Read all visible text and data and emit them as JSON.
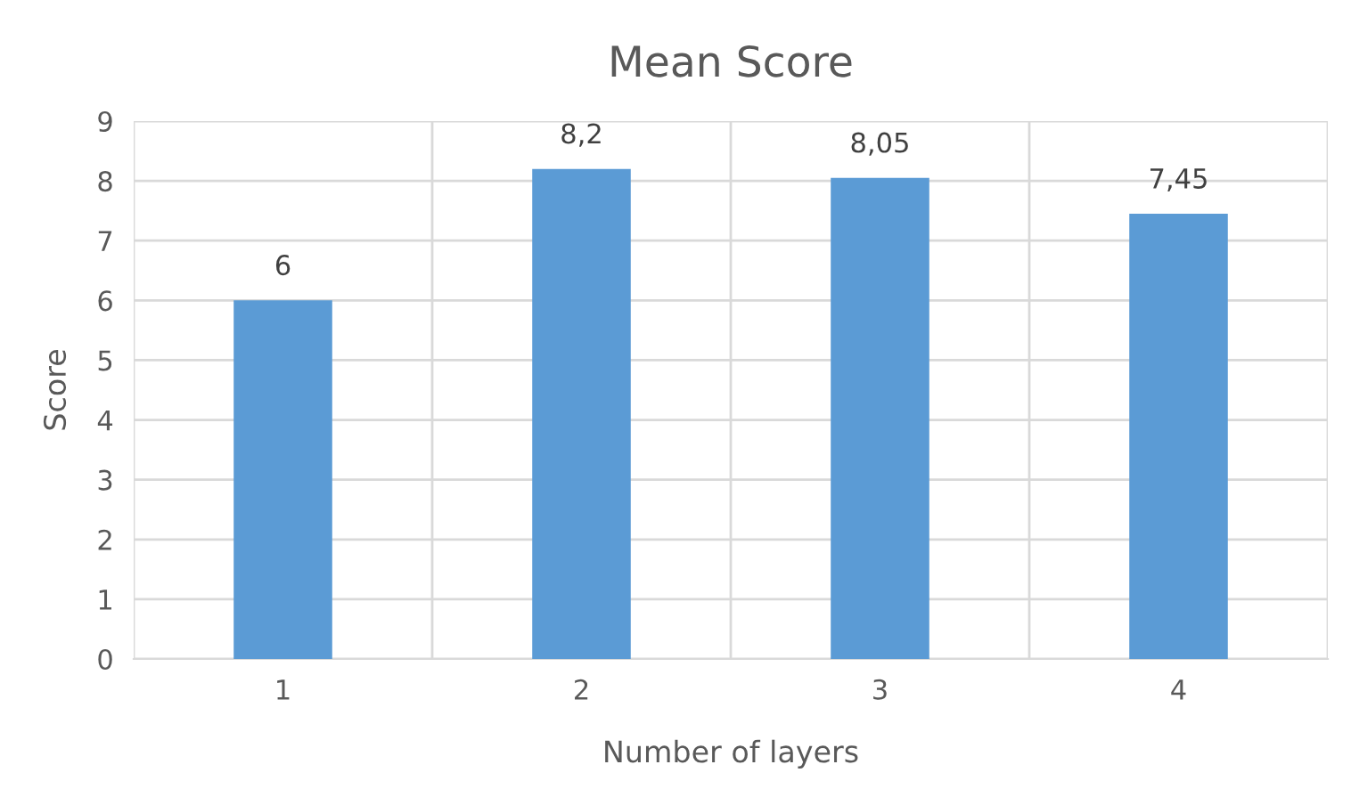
{
  "chart_data": {
    "type": "bar",
    "title": "Mean Score",
    "xlabel": "Number of layers",
    "ylabel": "Score",
    "categories": [
      "1",
      "2",
      "3",
      "4"
    ],
    "values": [
      6,
      8.2,
      8.05,
      7.45
    ],
    "value_labels": [
      "6",
      "8,2",
      "8,05",
      "7,45"
    ],
    "color": "#5b9bd5",
    "ylim": [
      0,
      9
    ],
    "yticks": [
      0,
      1,
      2,
      3,
      4,
      5,
      6,
      7,
      8,
      9
    ],
    "grid": true,
    "legend": false
  }
}
